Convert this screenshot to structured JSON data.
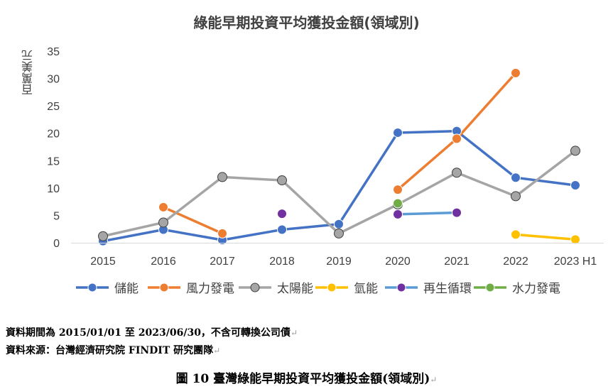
{
  "chart_data": {
    "type": "line",
    "title": "綠能早期投資平均獲投金額(領域別)",
    "ylabel": "百萬美元",
    "xlabel": "",
    "categories": [
      "2015",
      "2016",
      "2017",
      "2018",
      "2019",
      "2020",
      "2021",
      "2022",
      "2023 H1"
    ],
    "ylim": [
      0,
      35
    ],
    "yticks": [
      0,
      5,
      10,
      15,
      20,
      25,
      30,
      35
    ],
    "grid": false,
    "legend_position": "bottom",
    "series": [
      {
        "name": "儲能",
        "color": "#4472C4",
        "values": [
          0.3,
          2.4,
          0.5,
          2.4,
          3.4,
          20.1,
          20.4,
          11.9,
          10.5
        ]
      },
      {
        "name": "風力發電",
        "color": "#ED7D31",
        "values": [
          null,
          6.5,
          1.7,
          null,
          null,
          9.7,
          19.0,
          31.0,
          null
        ]
      },
      {
        "name": "太陽能",
        "color": "#A5A5A5",
        "values": [
          1.2,
          3.7,
          12.0,
          11.4,
          1.7,
          7.0,
          12.8,
          8.5,
          16.8
        ]
      },
      {
        "name": "氫能",
        "color": "#FFC000",
        "values": [
          null,
          null,
          null,
          null,
          null,
          null,
          null,
          1.5,
          0.6
        ]
      },
      {
        "name": "再生循環",
        "color": "#5B9BD5",
        "values": [
          null,
          null,
          null,
          null,
          null,
          5.2,
          5.5,
          null,
          null
        ]
      },
      {
        "name": "水力發電",
        "color": "#70AD47",
        "values": [
          null,
          null,
          null,
          null,
          null,
          7.2,
          null,
          null,
          null
        ]
      }
    ],
    "isolated_points": [
      {
        "series": "再生循環",
        "color": "#7030A0",
        "x": "2018",
        "y": 5.3
      },
      {
        "series": "再生循環",
        "color": "#7030A0",
        "x": "2020",
        "y": 5.2
      },
      {
        "series": "再生循環",
        "color": "#7030A0",
        "x": "2021",
        "y": 5.5
      }
    ],
    "legend_markers": {
      "儲能": {
        "line": "#4472C4",
        "marker": "#4472C4"
      },
      "風力發電": {
        "line": "#ED7D31",
        "marker": "#ED7D31"
      },
      "太陽能": {
        "line": "#A5A5A5",
        "marker": "#A5A5A5"
      },
      "氫能": {
        "line": "#FFC000",
        "marker": "#FFC000"
      },
      "再生循環": {
        "line": "#5B9BD5",
        "marker": "#7030A0"
      },
      "水力發電": {
        "line": "#70AD47",
        "marker": "#70AD47"
      }
    }
  },
  "notes": {
    "line1": "資料期間為 2015/01/01 至 2023/06/30，不含可轉換公司債",
    "line2": "資料來源：台灣經濟研究院 FINDIT 研究團隊"
  },
  "caption": "圖 10  臺灣綠能早期投資平均獲投金額(領域別)",
  "return_mark": "↵"
}
